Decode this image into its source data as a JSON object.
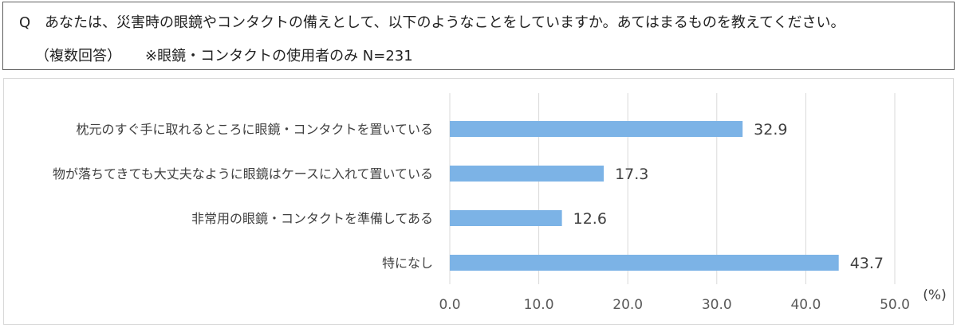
{
  "question": {
    "mark": "Q",
    "text": "あなたは、災害時の眼鏡やコンタクトの備えとして、以下のようなことをしていますか。あてはまるものを教えてください。",
    "answer_type": "（複数回答）",
    "note": "※眼鏡・コンタクトの使用者のみ N=231"
  },
  "chart_data": {
    "type": "bar",
    "orientation": "horizontal",
    "categories": [
      "枕元のすぐ手に取れるところに眼鏡・コンタクトを置いている",
      "物が落ちてきても大丈夫なように眼鏡はケースに入れて置いている",
      "非常用の眼鏡・コンタクトを準備してある",
      "特になし"
    ],
    "values": [
      32.9,
      17.3,
      12.6,
      43.7
    ],
    "value_labels": [
      "32.9",
      "17.3",
      "12.6",
      "43.7"
    ],
    "xlim": [
      0,
      50
    ],
    "x_ticks": [
      "0.0",
      "10.0",
      "20.0",
      "30.0",
      "40.0",
      "50.0"
    ],
    "x_tick_values": [
      0,
      10,
      20,
      30,
      40,
      50
    ],
    "unit": "(%)",
    "grid": true,
    "bar_color": "#7cb3e6",
    "grid_color": "#d9d9d9"
  }
}
